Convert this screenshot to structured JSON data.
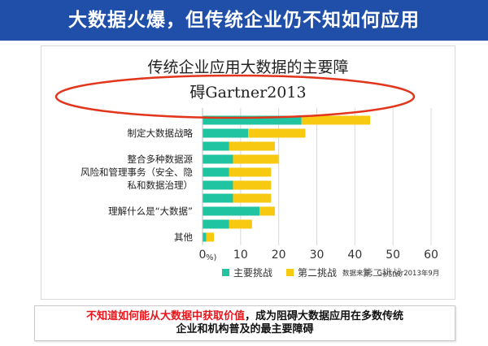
{
  "header": {
    "title": "大数据火爆，但传统企业仍不知如何应用"
  },
  "colors": {
    "banner": "#1f4fa8",
    "primary": "#20c4a0",
    "secondary": "#f7c911",
    "highlight": "#e8151b",
    "ellipse": "#e2351c"
  },
  "chart_data": {
    "type": "bar",
    "orientation": "horizontal",
    "stacked": true,
    "title_line1": "传统企业应用大数据的主要障",
    "title_line2": "碍Gartner2013",
    "categories": [
      "",
      "制定大数据战略",
      "",
      "整合多种数据源",
      "风险和管理事务（安全、隐",
      "私和数据治理）",
      "",
      "理解什么是“大数据”",
      "",
      "其他"
    ],
    "series": [
      {
        "name": "主要挑战",
        "color": "#20c4a0",
        "values": [
          26,
          12,
          7,
          8,
          7,
          8,
          8,
          15,
          7,
          1
        ]
      },
      {
        "name": "第二挑战",
        "color": "#f7c911",
        "values": [
          18,
          15,
          12,
          12,
          11,
          10,
          10,
          4,
          6,
          2
        ]
      }
    ],
    "x_ticks": [
      "0",
      "10",
      "20",
      "30",
      "40",
      "50",
      "60"
    ],
    "xlim": [
      0,
      60
    ],
    "unit_label": "%)",
    "legend_extra": "第二挑战",
    "source_note": "数据来源：Gartner2013年9月",
    "grid": true,
    "legend_position": "bottom"
  },
  "footer": {
    "highlight": "不知道如何能从大数据中获取价值",
    "rest": "，成为阻碍大数据应用在多数传统",
    "line2": "企业和机构普及的最主要障碍"
  }
}
